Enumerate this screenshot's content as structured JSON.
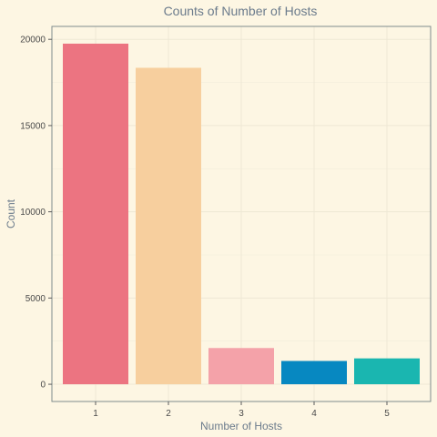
{
  "chart_data": {
    "type": "bar",
    "title": "Counts of Number of Hosts",
    "xlabel": "Number of Hosts",
    "ylabel": "Count",
    "categories": [
      "1",
      "2",
      "3",
      "4",
      "5"
    ],
    "values": [
      19750,
      18350,
      2100,
      1350,
      1500
    ],
    "colors": [
      "#EC7481",
      "#F7CF9E",
      "#F4A2A9",
      "#0788C1",
      "#1AB6B0"
    ],
    "yticks": [
      0,
      5000,
      10000,
      15000,
      20000
    ],
    "ytick_labels": [
      "0",
      "5000",
      "10000",
      "15000",
      "20000"
    ],
    "ylim": [
      -1000,
      20750
    ],
    "grid": true,
    "background": "#FDF6E3"
  }
}
